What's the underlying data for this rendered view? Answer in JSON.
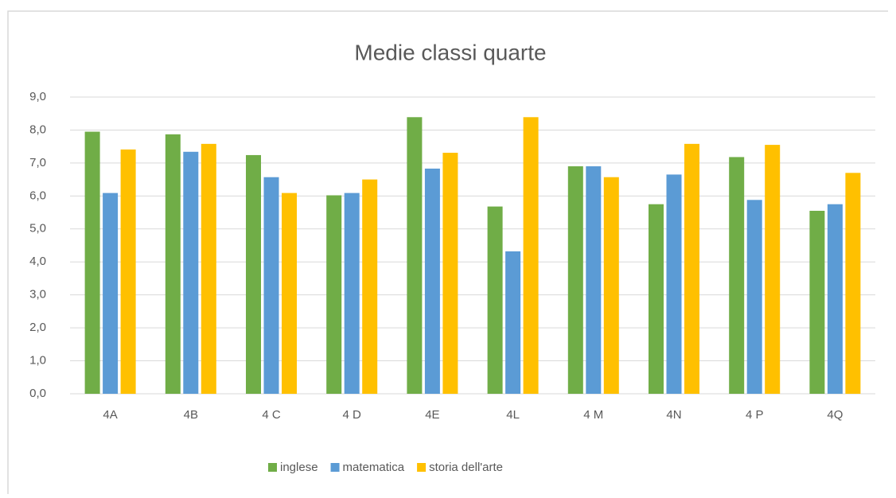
{
  "chart_data": {
    "type": "bar",
    "title": "Medie classi quarte",
    "categories": [
      "4A",
      "4B",
      "4 C",
      "4 D",
      "4E",
      "4L",
      "4 M",
      "4N",
      "4 P",
      "4Q"
    ],
    "series": [
      {
        "name": "inglese",
        "color": "#70ad47",
        "values": [
          7.95,
          7.87,
          7.24,
          6.02,
          8.39,
          5.68,
          6.9,
          5.75,
          7.18,
          5.55
        ]
      },
      {
        "name": "matematica",
        "color": "#5b9bd5",
        "values": [
          6.09,
          7.34,
          6.57,
          6.09,
          6.83,
          4.32,
          6.9,
          6.65,
          5.88,
          5.75
        ]
      },
      {
        "name": "storia dell'arte",
        "color": "#ffc000",
        "values": [
          7.41,
          7.58,
          6.09,
          6.5,
          7.31,
          8.39,
          6.57,
          7.58,
          7.55,
          6.7
        ]
      }
    ],
    "ylim": [
      0,
      9
    ],
    "yticks": [
      {
        "value": 0,
        "label": "0,0"
      },
      {
        "value": 1,
        "label": "1,0"
      },
      {
        "value": 2,
        "label": "2,0"
      },
      {
        "value": 3,
        "label": "3,0"
      },
      {
        "value": 4,
        "label": "4,0"
      },
      {
        "value": 5,
        "label": "5,0"
      },
      {
        "value": 6,
        "label": "6,0"
      },
      {
        "value": 7,
        "label": "7,0"
      },
      {
        "value": 8,
        "label": "8,0"
      },
      {
        "value": 9,
        "label": "9,0"
      }
    ],
    "grid": true,
    "legend": "bottom"
  }
}
